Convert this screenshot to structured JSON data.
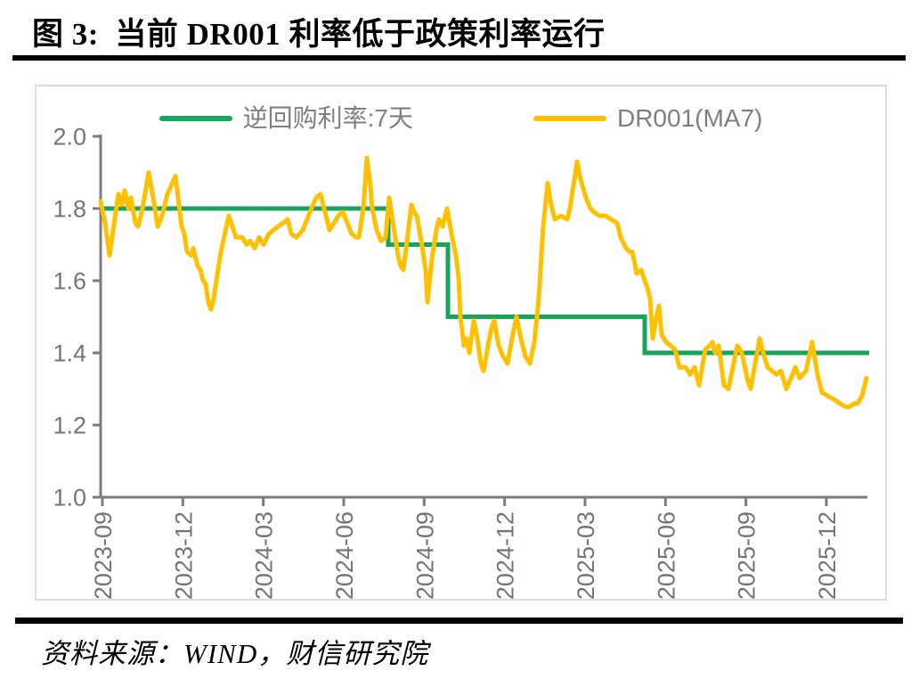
{
  "header": {
    "title": "图 3:  当前 DR001 利率低于政策利率运行"
  },
  "footer": {
    "source": "资料来源：WIND，财信研究院"
  },
  "chart_data": {
    "type": "line",
    "title": "当前 DR001 利率低于政策利率运行",
    "x_unit": "days_since_first_tick(2023-09), ~1px/day",
    "y_axis": {
      "min": 1.0,
      "max": 2.0,
      "tick_step": 0.2,
      "tick_labels": [
        "2.0",
        "1.8",
        "1.6",
        "1.4",
        "1.2",
        "1.0"
      ]
    },
    "x_axis": {
      "tick_labels": [
        "2023-09",
        "2023-12",
        "2024-03",
        "2024-06",
        "2024-09",
        "2024-12",
        "2025-03",
        "2025-06",
        "2025-09",
        "2025-12"
      ]
    },
    "colors": {
      "policy_green": "#17a45c",
      "dr001_yellow": "#ffc000",
      "axis_gray": "#7c7c7c",
      "label_gray": "#757575"
    },
    "legend_position": "top-center",
    "series": [
      {
        "name": "逆回购利率:7天",
        "color": "#17a45c",
        "style": "step",
        "steps": [
          {
            "value": 1.8,
            "from_day": 0,
            "to_day": 321
          },
          {
            "value": 1.7,
            "from_day": 321,
            "to_day": 388
          },
          {
            "value": 1.5,
            "from_day": 388,
            "to_day": 609
          },
          {
            "value": 1.4,
            "from_day": 609,
            "to_day": 861
          }
        ]
      },
      {
        "name": "DR001(MA7)",
        "color": "#ffc000",
        "style": "line",
        "points": [
          [
            -2,
            1.82
          ],
          [
            3,
            1.76
          ],
          [
            8,
            1.67
          ],
          [
            15,
            1.79
          ],
          [
            18,
            1.84
          ],
          [
            22,
            1.81
          ],
          [
            25,
            1.85
          ],
          [
            29,
            1.8
          ],
          [
            32,
            1.83
          ],
          [
            37,
            1.76
          ],
          [
            40,
            1.75
          ],
          [
            45,
            1.8
          ],
          [
            52,
            1.9
          ],
          [
            57,
            1.83
          ],
          [
            62,
            1.75
          ],
          [
            67,
            1.78
          ],
          [
            73,
            1.84
          ],
          [
            82,
            1.89
          ],
          [
            89,
            1.75
          ],
          [
            92,
            1.73
          ],
          [
            95,
            1.68
          ],
          [
            100,
            1.67
          ],
          [
            102,
            1.69
          ],
          [
            107,
            1.64
          ],
          [
            110,
            1.63
          ],
          [
            113,
            1.6
          ],
          [
            116,
            1.59
          ],
          [
            119,
            1.54
          ],
          [
            122,
            1.52
          ],
          [
            125,
            1.55
          ],
          [
            128,
            1.6
          ],
          [
            133,
            1.68
          ],
          [
            142,
            1.78
          ],
          [
            150,
            1.72
          ],
          [
            157,
            1.72
          ],
          [
            162,
            1.7
          ],
          [
            166,
            1.71
          ],
          [
            171,
            1.69
          ],
          [
            176,
            1.72
          ],
          [
            181,
            1.7
          ],
          [
            187,
            1.73
          ],
          [
            192,
            1.74
          ],
          [
            197,
            1.75
          ],
          [
            203,
            1.76
          ],
          [
            208,
            1.77
          ],
          [
            212,
            1.73
          ],
          [
            218,
            1.72
          ],
          [
            225,
            1.74
          ],
          [
            233,
            1.79
          ],
          [
            240,
            1.83
          ],
          [
            245,
            1.84
          ],
          [
            252,
            1.77
          ],
          [
            255,
            1.74
          ],
          [
            265,
            1.78
          ],
          [
            270,
            1.79
          ],
          [
            280,
            1.73
          ],
          [
            285,
            1.72
          ],
          [
            288,
            1.72
          ],
          [
            293,
            1.8
          ],
          [
            297,
            1.94
          ],
          [
            301,
            1.86
          ],
          [
            303,
            1.8
          ],
          [
            308,
            1.74
          ],
          [
            313,
            1.71
          ],
          [
            318,
            1.72
          ],
          [
            322,
            1.83
          ],
          [
            327,
            1.75
          ],
          [
            332,
            1.67
          ],
          [
            335,
            1.64
          ],
          [
            338,
            1.63
          ],
          [
            347,
            1.81
          ],
          [
            350,
            1.79
          ],
          [
            353,
            1.78
          ],
          [
            358,
            1.71
          ],
          [
            363,
            1.63
          ],
          [
            365,
            1.54
          ],
          [
            370,
            1.66
          ],
          [
            375,
            1.74
          ],
          [
            378,
            1.77
          ],
          [
            382,
            1.75
          ],
          [
            387,
            1.8
          ],
          [
            392,
            1.73
          ],
          [
            397,
            1.67
          ],
          [
            400,
            1.61
          ],
          [
            402,
            1.5
          ],
          [
            406,
            1.42
          ],
          [
            409,
            1.44
          ],
          [
            412,
            1.4
          ],
          [
            417,
            1.49
          ],
          [
            421,
            1.44
          ],
          [
            425,
            1.37
          ],
          [
            428,
            1.35
          ],
          [
            433,
            1.42
          ],
          [
            437,
            1.47
          ],
          [
            440,
            1.49
          ],
          [
            445,
            1.42
          ],
          [
            450,
            1.39
          ],
          [
            455,
            1.37
          ],
          [
            460,
            1.44
          ],
          [
            465,
            1.5
          ],
          [
            470,
            1.44
          ],
          [
            475,
            1.39
          ],
          [
            480,
            1.37
          ],
          [
            485,
            1.43
          ],
          [
            488,
            1.5
          ],
          [
            490,
            1.55
          ],
          [
            495,
            1.75
          ],
          [
            500,
            1.87
          ],
          [
            503,
            1.82
          ],
          [
            508,
            1.77
          ],
          [
            515,
            1.78
          ],
          [
            522,
            1.77
          ],
          [
            525,
            1.8
          ],
          [
            530,
            1.88
          ],
          [
            533,
            1.93
          ],
          [
            537,
            1.88
          ],
          [
            543,
            1.83
          ],
          [
            548,
            1.8
          ],
          [
            552,
            1.79
          ],
          [
            558,
            1.78
          ],
          [
            565,
            1.78
          ],
          [
            571,
            1.77
          ],
          [
            578,
            1.76
          ],
          [
            582,
            1.72
          ],
          [
            588,
            1.69
          ],
          [
            592,
            1.68
          ],
          [
            595,
            1.68
          ],
          [
            600,
            1.62
          ],
          [
            605,
            1.63
          ],
          [
            609,
            1.6
          ],
          [
            612,
            1.58
          ],
          [
            615,
            1.55
          ],
          [
            618,
            1.44
          ],
          [
            622,
            1.5
          ],
          [
            625,
            1.53
          ],
          [
            628,
            1.45
          ],
          [
            633,
            1.43
          ],
          [
            638,
            1.42
          ],
          [
            643,
            1.41
          ],
          [
            648,
            1.36
          ],
          [
            655,
            1.36
          ],
          [
            660,
            1.34
          ],
          [
            665,
            1.36
          ],
          [
            670,
            1.31
          ],
          [
            677,
            1.41
          ],
          [
            682,
            1.42
          ],
          [
            685,
            1.43
          ],
          [
            688,
            1.4
          ],
          [
            692,
            1.42
          ],
          [
            698,
            1.31
          ],
          [
            703,
            1.3
          ],
          [
            713,
            1.42
          ],
          [
            718,
            1.4
          ],
          [
            725,
            1.32
          ],
          [
            728,
            1.3
          ],
          [
            738,
            1.44
          ],
          [
            742,
            1.4
          ],
          [
            747,
            1.36
          ],
          [
            752,
            1.35
          ],
          [
            757,
            1.34
          ],
          [
            762,
            1.35
          ],
          [
            768,
            1.3
          ],
          [
            775,
            1.34
          ],
          [
            778,
            1.36
          ],
          [
            783,
            1.33
          ],
          [
            790,
            1.35
          ],
          [
            797,
            1.43
          ],
          [
            803,
            1.34
          ],
          [
            808,
            1.29
          ],
          [
            815,
            1.28
          ],
          [
            822,
            1.27
          ],
          [
            828,
            1.26
          ],
          [
            835,
            1.25
          ],
          [
            838,
            1.25
          ],
          [
            845,
            1.26
          ],
          [
            848,
            1.26
          ],
          [
            853,
            1.28
          ],
          [
            858,
            1.33
          ]
        ]
      }
    ]
  }
}
